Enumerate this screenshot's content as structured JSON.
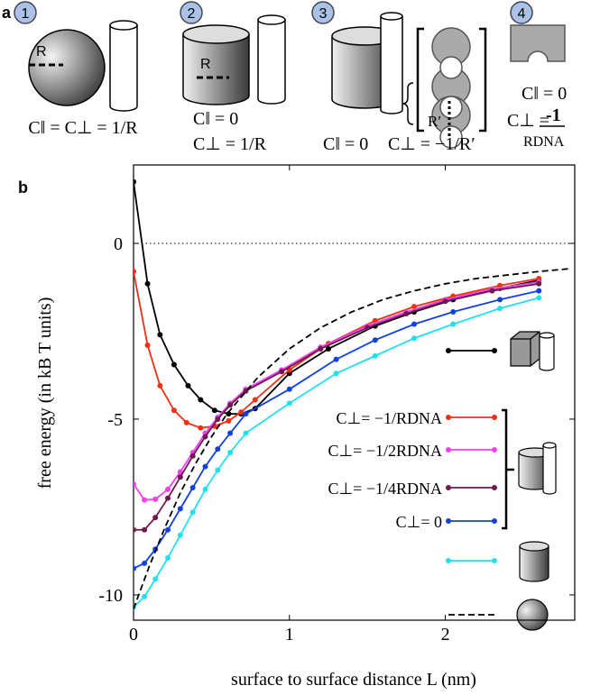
{
  "panel_a": {
    "label": "a",
    "items": [
      {
        "number": "1",
        "radius_label": "R",
        "lines": [
          "C‖ = C⊥ = 1/R"
        ]
      },
      {
        "number": "2",
        "radius_label": "R",
        "lines": [
          "C‖ = 0",
          "C⊥ = 1/R"
        ]
      },
      {
        "number": "3",
        "radius_label": "R′",
        "lines": [
          "C‖ = 0",
          "C⊥ = −1/R′"
        ]
      },
      {
        "number": "4",
        "lines": [
          "C‖ = 0",
          "C⊥ =",
          "-1",
          "RDNA"
        ]
      }
    ]
  },
  "chart_data": {
    "type": "line",
    "panel_label": "b",
    "x_label": "surface to surface distance L (nm)",
    "y_label": "free energy (in kB T units)",
    "xlim": [
      0,
      2.83
    ],
    "ylim": [
      -10.72,
      2.23
    ],
    "xticks": [
      0,
      1,
      2
    ],
    "yticks": [
      0,
      -5,
      -10
    ],
    "hline": 0,
    "series": [
      {
        "name": null,
        "color": "#000000",
        "markers": true,
        "x": [
          0,
          0.09,
          0.17,
          0.26,
          0.35,
          0.43,
          0.52,
          0.61,
          0.69,
          0.78,
          1.0,
          1.25,
          1.55,
          1.8,
          2.05,
          2.35,
          2.6
        ],
        "values": [
          1.75,
          -1.15,
          -2.6,
          -3.45,
          -4.05,
          -4.45,
          -4.75,
          -4.85,
          -4.85,
          -4.7,
          -3.7,
          -3.0,
          -2.35,
          -1.95,
          -1.6,
          -1.28,
          -1.05
        ]
      },
      {
        "name": "C⊥= −1/RDNA",
        "color": "#f03010",
        "markers": true,
        "x": [
          0,
          0.09,
          0.17,
          0.26,
          0.34,
          0.43,
          0.52,
          0.61,
          0.69,
          0.78,
          1.0,
          1.25,
          1.55,
          1.8,
          2.05,
          2.35,
          2.6
        ],
        "values": [
          -0.8,
          -2.9,
          -4.05,
          -4.75,
          -5.1,
          -5.25,
          -5.2,
          -5.05,
          -4.8,
          -4.45,
          -3.6,
          -2.85,
          -2.2,
          -1.8,
          -1.5,
          -1.2,
          -1.0
        ]
      },
      {
        "name": "C⊥= −1/2RDNA",
        "color": "#f040f0",
        "markers": true,
        "x": [
          0,
          0.07,
          0.14,
          0.22,
          0.3,
          0.38,
          0.46,
          0.54,
          0.62,
          0.72,
          0.95,
          1.2,
          1.5,
          1.75,
          2.0,
          2.3,
          2.6
        ],
        "values": [
          -6.85,
          -7.3,
          -7.28,
          -7.0,
          -6.5,
          -5.95,
          -5.4,
          -4.95,
          -4.55,
          -4.15,
          -3.6,
          -2.95,
          -2.35,
          -1.95,
          -1.6,
          -1.3,
          -1.1
        ]
      },
      {
        "name": "C⊥= −1/4RDNA",
        "color": "#701850",
        "markers": true,
        "x": [
          0,
          0.07,
          0.14,
          0.22,
          0.3,
          0.38,
          0.46,
          0.54,
          0.62,
          0.72,
          0.95,
          1.2,
          1.5,
          1.75,
          2.0,
          2.3,
          2.6
        ],
        "values": [
          -8.15,
          -8.15,
          -7.8,
          -7.25,
          -6.65,
          -6.05,
          -5.5,
          -5.0,
          -4.6,
          -4.2,
          -3.65,
          -3.0,
          -2.4,
          -2.0,
          -1.65,
          -1.35,
          -1.15
        ]
      },
      {
        "name": "C⊥= 0",
        "color": "#1040e0",
        "markers": true,
        "x": [
          0,
          0.07,
          0.14,
          0.22,
          0.3,
          0.38,
          0.46,
          0.54,
          0.62,
          0.72,
          1.0,
          1.3,
          1.55,
          1.8,
          2.05,
          2.35,
          2.6
        ],
        "values": [
          -9.25,
          -9.1,
          -8.7,
          -8.15,
          -7.55,
          -6.95,
          -6.35,
          -5.85,
          -5.4,
          -4.85,
          -4.15,
          -3.3,
          -2.75,
          -2.3,
          -1.95,
          -1.6,
          -1.35
        ]
      },
      {
        "name": null,
        "color": "#20e0f0",
        "markers": true,
        "x": [
          0,
          0.07,
          0.14,
          0.22,
          0.3,
          0.38,
          0.46,
          0.54,
          0.62,
          0.72,
          1.0,
          1.3,
          1.55,
          1.8,
          2.05,
          2.35,
          2.6
        ],
        "values": [
          -10.35,
          -10.05,
          -9.55,
          -8.95,
          -8.3,
          -7.65,
          -7.0,
          -6.45,
          -5.95,
          -5.4,
          -4.55,
          -3.7,
          -3.2,
          -2.7,
          -2.3,
          -1.85,
          -1.55
        ]
      },
      {
        "name": null,
        "color": "#000000",
        "markers": false,
        "dashed": true,
        "x": [
          0,
          0.1,
          0.2,
          0.3,
          0.4,
          0.5,
          0.6,
          0.8,
          1.0,
          1.2,
          1.4,
          1.6,
          1.8,
          2.0,
          2.2,
          2.4,
          2.6,
          2.8
        ],
        "values": [
          -10.4,
          -9.2,
          -8.1,
          -7.1,
          -6.25,
          -5.5,
          -4.85,
          -3.8,
          -3.0,
          -2.4,
          -1.95,
          -1.6,
          -1.35,
          -1.15,
          -1.0,
          -0.9,
          -0.8,
          -0.72
        ]
      }
    ]
  }
}
